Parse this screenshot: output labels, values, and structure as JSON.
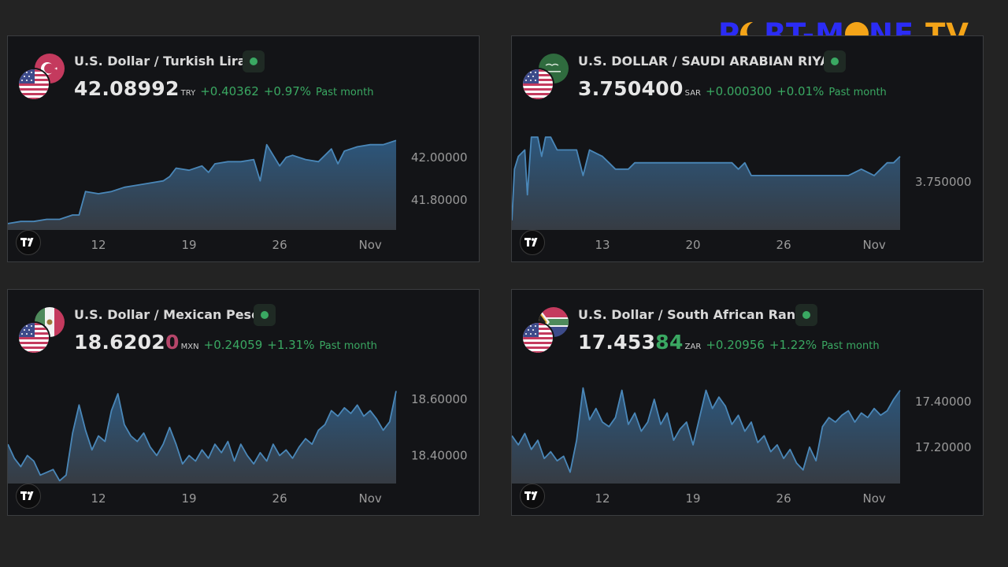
{
  "logo": {
    "part1": "P",
    "part2": "RT-M",
    "part3": "NE",
    "part4": " TV"
  },
  "colors": {
    "background": "#232323",
    "card": "#131417",
    "line": "#4a87b8",
    "positive": "#3aa862",
    "negative": "#b5466a"
  },
  "cards": [
    {
      "pair": "U.S. Dollar / Turkish Lira",
      "price_main": "42.08992",
      "price_tail": "",
      "currency": "TRY",
      "change": "+0.40362",
      "change_pct": "+0.97%",
      "period": "Past month",
      "flags": [
        "tr-flag-icon",
        "us-flag-icon"
      ]
    },
    {
      "pair": "U.S. DOLLAR / SAUDI ARABIAN RIYAL",
      "price_main": "3.750400",
      "price_tail": "",
      "currency": "SAR",
      "change": "+0.000300",
      "change_pct": "+0.01%",
      "period": "Past month",
      "flags": [
        "sa-flag-icon",
        "us-flag-icon"
      ]
    },
    {
      "pair": "U.S. Dollar / Mexican Peso",
      "price_main": "18.6202",
      "price_tail": "0",
      "currency": "MXN",
      "change": "+0.24059",
      "change_pct": "+1.31%",
      "period": "Past month",
      "flags": [
        "mx-flag-icon",
        "us-flag-icon"
      ]
    },
    {
      "pair": "U.S. Dollar / South African Rand",
      "price_main": "17.453",
      "price_tail": "84",
      "currency": "ZAR",
      "change": "+0.20956",
      "change_pct": "+1.22%",
      "period": "Past month",
      "flags": [
        "za-flag-icon",
        "us-flag-icon"
      ]
    }
  ],
  "chart_data": [
    {
      "type": "area",
      "ylim": [
        41.66,
        42.14
      ],
      "y_ticks": [
        42.0,
        41.8
      ],
      "y_tick_labels": [
        "42.00000",
        "41.80000"
      ],
      "x_ticks": [
        "12",
        "19",
        "26",
        "Nov"
      ],
      "x_tick_positions": [
        7,
        14,
        21,
        28
      ],
      "x": [
        0,
        1,
        2,
        3,
        4,
        5,
        5.5,
        6,
        7,
        8,
        9,
        10,
        11,
        12,
        12.5,
        13,
        14,
        15,
        15.5,
        16,
        17,
        18,
        19,
        19.5,
        20,
        20.5,
        21,
        21.5,
        22,
        23,
        24,
        25,
        25.5,
        26,
        27,
        28,
        29,
        30
      ],
      "y": [
        41.69,
        41.7,
        41.7,
        41.71,
        41.71,
        41.73,
        41.73,
        41.84,
        41.83,
        41.84,
        41.86,
        41.87,
        41.88,
        41.89,
        41.91,
        41.95,
        41.94,
        41.96,
        41.93,
        41.97,
        41.98,
        41.98,
        41.99,
        41.89,
        42.06,
        42.01,
        41.96,
        42.0,
        42.01,
        41.99,
        41.98,
        42.04,
        41.97,
        42.03,
        42.05,
        42.06,
        42.06,
        42.08
      ]
    },
    {
      "type": "area",
      "ylim": [
        3.74925,
        3.75085
      ],
      "y_ticks": [
        3.75
      ],
      "y_tick_labels": [
        "3.750000"
      ],
      "x_ticks": [
        "13",
        "20",
        "26",
        "Nov"
      ],
      "x_tick_positions": [
        7,
        14,
        21,
        28
      ],
      "x": [
        0,
        0.2,
        0.5,
        1,
        1.2,
        1.5,
        2,
        2.3,
        2.6,
        3,
        3.5,
        4,
        5,
        5.5,
        6,
        7,
        7.5,
        8,
        9,
        9.5,
        10,
        11,
        12,
        13,
        14,
        15,
        16,
        17,
        17.5,
        18,
        18.5,
        19,
        20,
        21,
        22,
        23,
        24,
        25,
        26,
        27,
        28,
        28.5,
        29,
        29.5,
        30
      ],
      "y": [
        3.7494,
        3.7502,
        3.7504,
        3.7505,
        3.7498,
        3.7507,
        3.7507,
        3.7504,
        3.7507,
        3.7507,
        3.7505,
        3.7505,
        3.7505,
        3.7501,
        3.7505,
        3.7504,
        3.7503,
        3.7502,
        3.7502,
        3.7503,
        3.7503,
        3.7503,
        3.7503,
        3.7503,
        3.7503,
        3.7503,
        3.7503,
        3.7503,
        3.7502,
        3.7503,
        3.7501,
        3.7501,
        3.7501,
        3.7501,
        3.7501,
        3.7501,
        3.7501,
        3.7501,
        3.7501,
        3.7502,
        3.7501,
        3.7502,
        3.7503,
        3.7503,
        3.7504
      ]
    },
    {
      "type": "area",
      "ylim": [
        18.3,
        18.665
      ],
      "y_ticks": [
        18.6,
        18.4
      ],
      "y_tick_labels": [
        "18.60000",
        "18.40000"
      ],
      "x_ticks": [
        "12",
        "19",
        "26",
        "Nov"
      ],
      "x_tick_positions": [
        7,
        14,
        21,
        28
      ],
      "x": [
        0,
        0.5,
        1,
        1.5,
        2,
        2.5,
        3,
        3.5,
        4,
        4.5,
        5,
        5.5,
        6,
        6.5,
        7,
        7.5,
        8,
        8.5,
        9,
        9.5,
        10,
        10.5,
        11,
        11.5,
        12,
        12.5,
        13,
        13.5,
        14,
        14.5,
        15,
        15.5,
        16,
        16.5,
        17,
        17.5,
        18,
        18.5,
        19,
        19.5,
        20,
        20.5,
        21,
        21.5,
        22,
        22.5,
        23,
        23.5,
        24,
        24.5,
        25,
        25.5,
        26,
        26.5,
        27,
        27.5,
        28,
        28.5,
        29,
        29.5,
        30
      ],
      "y": [
        18.44,
        18.39,
        18.36,
        18.4,
        18.38,
        18.33,
        18.34,
        18.35,
        18.31,
        18.33,
        18.48,
        18.58,
        18.49,
        18.42,
        18.47,
        18.45,
        18.56,
        18.62,
        18.51,
        18.47,
        18.45,
        18.48,
        18.43,
        18.4,
        18.44,
        18.5,
        18.44,
        18.37,
        18.4,
        18.38,
        18.42,
        18.39,
        18.44,
        18.41,
        18.45,
        18.38,
        18.44,
        18.4,
        18.37,
        18.41,
        18.38,
        18.44,
        18.4,
        18.42,
        18.39,
        18.43,
        18.46,
        18.44,
        18.49,
        18.51,
        18.56,
        18.54,
        18.57,
        18.55,
        18.58,
        18.54,
        18.56,
        18.53,
        18.49,
        18.52,
        18.63
      ]
    },
    {
      "type": "area",
      "ylim": [
        17.04,
        17.49
      ],
      "y_ticks": [
        17.4,
        17.2
      ],
      "y_tick_labels": [
        "17.40000",
        "17.20000"
      ],
      "x_ticks": [
        "12",
        "19",
        "26",
        "Nov"
      ],
      "x_tick_positions": [
        7,
        14,
        21,
        28
      ],
      "x": [
        0,
        0.5,
        1,
        1.5,
        2,
        2.5,
        3,
        3.5,
        4,
        4.5,
        5,
        5.5,
        6,
        6.5,
        7,
        7.5,
        8,
        8.5,
        9,
        9.5,
        10,
        10.5,
        11,
        11.5,
        12,
        12.5,
        13,
        13.5,
        14,
        14.5,
        15,
        15.5,
        16,
        16.5,
        17,
        17.5,
        18,
        18.5,
        19,
        19.5,
        20,
        20.5,
        21,
        21.5,
        22,
        22.5,
        23,
        23.5,
        24,
        24.5,
        25,
        25.5,
        26,
        26.5,
        27,
        27.5,
        28,
        28.5,
        29,
        29.5,
        30
      ],
      "y": [
        17.25,
        17.21,
        17.26,
        17.19,
        17.23,
        17.15,
        17.18,
        17.14,
        17.16,
        17.09,
        17.23,
        17.46,
        17.32,
        17.37,
        17.31,
        17.29,
        17.33,
        17.45,
        17.3,
        17.35,
        17.27,
        17.31,
        17.41,
        17.3,
        17.35,
        17.23,
        17.28,
        17.31,
        17.21,
        17.33,
        17.45,
        17.37,
        17.42,
        17.38,
        17.3,
        17.34,
        17.27,
        17.31,
        17.22,
        17.25,
        17.18,
        17.21,
        17.15,
        17.19,
        17.13,
        17.1,
        17.2,
        17.14,
        17.29,
        17.33,
        17.31,
        17.34,
        17.36,
        17.31,
        17.35,
        17.33,
        17.37,
        17.34,
        17.36,
        17.41,
        17.45
      ]
    }
  ]
}
